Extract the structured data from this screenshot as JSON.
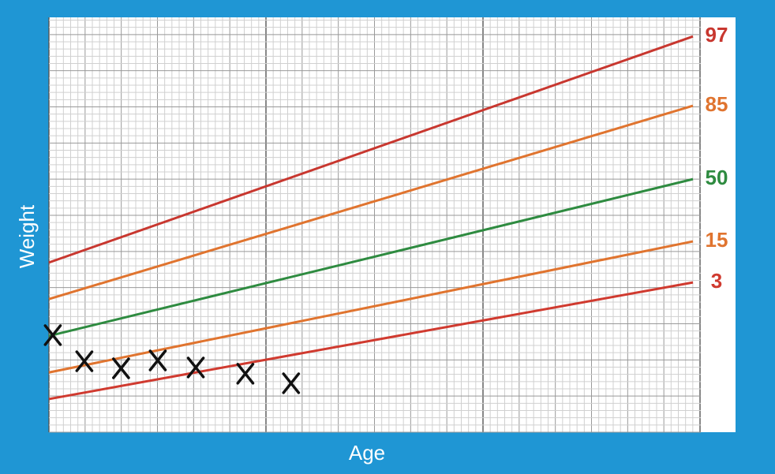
{
  "chart_data": {
    "type": "line",
    "x_label": "Age",
    "y_label": "Weight",
    "xlim": [
      0,
      100
    ],
    "ylim": [
      0,
      100
    ],
    "x": [
      0,
      100
    ],
    "series": [
      {
        "name": "97",
        "color": "#c8372f",
        "values": [
          40.9,
          95.4
        ]
      },
      {
        "name": "85",
        "color": "#e0742f",
        "values": [
          32.1,
          78.7
        ]
      },
      {
        "name": "50",
        "color": "#2e8b40",
        "values": [
          23.2,
          61.0
        ]
      },
      {
        "name": "15",
        "color": "#e0742f",
        "values": [
          14.4,
          46.0
        ]
      },
      {
        "name": "3",
        "color": "#d03a2f",
        "values": [
          8.0,
          36.1
        ]
      }
    ],
    "points": {
      "marker": "x",
      "color": "#111111",
      "x": [
        0.6,
        5.5,
        11.2,
        16.9,
        22.8,
        30.5,
        37.6
      ],
      "y": [
        23.4,
        17.1,
        15.4,
        17.3,
        15.6,
        14.1,
        11.8
      ]
    },
    "grid": true
  }
}
